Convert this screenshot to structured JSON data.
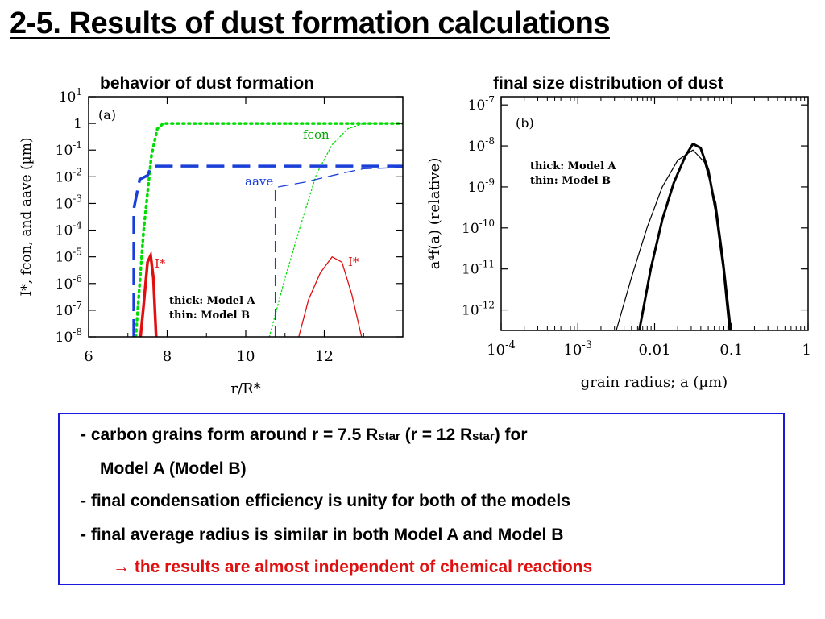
{
  "slide": {
    "title": "2-5. Results of dust formation calculations"
  },
  "panels": {
    "left_title": "behavior of dust formation",
    "right_title": "final size distribution of dust"
  },
  "chart_data": [
    {
      "type": "line",
      "panel_label": "(a)",
      "xlabel": "r/R*",
      "ylabel": "I*, fcon, and aave (µm)",
      "log_y": true,
      "xlim": [
        6,
        14
      ],
      "ylim": [
        -8,
        1
      ],
      "x_ticks": [
        "6",
        "8",
        "10",
        "12"
      ],
      "y_ticks": [
        "10^1",
        "1",
        "10^-1",
        "10^-2",
        "10^-3",
        "10^-4",
        "10^-5",
        "10^-6",
        "10^-7",
        "10^-8"
      ],
      "legend_note": [
        "thick: Model A",
        "thin: Model B"
      ],
      "series": [
        {
          "name": "fcon",
          "model": "A",
          "style": "thick-dotted",
          "color": "#00dd00",
          "points": [
            [
              7.2,
              -8
            ],
            [
              7.4,
              -4
            ],
            [
              7.6,
              -1.2
            ],
            [
              7.75,
              -0.2
            ],
            [
              7.9,
              0
            ],
            [
              14,
              0
            ]
          ]
        },
        {
          "name": "fcon",
          "model": "B",
          "style": "thin-dotted",
          "color": "#00dd00",
          "points": [
            [
              10.6,
              -8
            ],
            [
              11.0,
              -5.8
            ],
            [
              11.4,
              -3.8
            ],
            [
              11.8,
              -1.9
            ],
            [
              12.2,
              -0.8
            ],
            [
              12.6,
              -0.2
            ],
            [
              13.0,
              0
            ],
            [
              14,
              0
            ]
          ]
        },
        {
          "name": "aave",
          "model": "A",
          "style": "thick-dashed",
          "color": "#1a3fd8",
          "points": [
            [
              7.15,
              -8
            ],
            [
              7.15,
              -3.2
            ],
            [
              7.3,
              -2.1
            ],
            [
              7.5,
              -1.95
            ],
            [
              7.6,
              -1.6
            ],
            [
              14,
              -1.6
            ]
          ]
        },
        {
          "name": "aave",
          "model": "B",
          "style": "thin-dashed",
          "color": "#1a3fd8",
          "points": [
            [
              10.75,
              -8
            ],
            [
              10.75,
              -2.4
            ],
            [
              11.5,
              -2.2
            ],
            [
              12.5,
              -1.85
            ],
            [
              13.0,
              -1.7
            ],
            [
              14,
              -1.65
            ]
          ]
        },
        {
          "name": "I*",
          "model": "A",
          "style": "thick-solid",
          "color": "#e01010",
          "points": [
            [
              7.32,
              -8
            ],
            [
              7.4,
              -6.8
            ],
            [
              7.5,
              -5.2
            ],
            [
              7.58,
              -4.95
            ],
            [
              7.65,
              -5.8
            ],
            [
              7.72,
              -8
            ]
          ]
        },
        {
          "name": "I*",
          "model": "B",
          "style": "thin-solid",
          "color": "#e01010",
          "points": [
            [
              11.35,
              -8
            ],
            [
              11.6,
              -6.6
            ],
            [
              11.9,
              -5.6
            ],
            [
              12.2,
              -5.0
            ],
            [
              12.45,
              -5.2
            ],
            [
              12.7,
              -6.4
            ],
            [
              12.95,
              -8
            ]
          ]
        }
      ],
      "annotations": [
        {
          "text": "fcon",
          "color": "#00aa00"
        },
        {
          "text": "aave",
          "color": "#1a3fd8"
        },
        {
          "text": "I*",
          "color": "#e01010"
        },
        {
          "text": "I*",
          "color": "#e01010"
        }
      ]
    },
    {
      "type": "line",
      "panel_label": "(b)",
      "xlabel": "grain radius; a (µm)",
      "ylabel": "a⁴f(a) (relative)",
      "log_x": true,
      "log_y": true,
      "xlim": [
        -4,
        0
      ],
      "ylim": [
        -12.5,
        -6.8
      ],
      "x_ticks": [
        "10^-4",
        "10^-3",
        "0.01",
        "0.1",
        "1"
      ],
      "y_ticks": [
        "10^-7",
        "10^-8",
        "10^-9",
        "10^-10",
        "10^-11",
        "10^-12"
      ],
      "legend_note": [
        "thick: Model A",
        "thin: Model B"
      ],
      "series": [
        {
          "name": "Model A",
          "style": "thick",
          "color": "#000000",
          "points": [
            [
              -2.2,
              -12.5
            ],
            [
              -2.05,
              -11.0
            ],
            [
              -1.9,
              -9.8
            ],
            [
              -1.75,
              -8.9
            ],
            [
              -1.6,
              -8.25
            ],
            [
              -1.5,
              -7.95
            ],
            [
              -1.4,
              -8.05
            ],
            [
              -1.3,
              -8.6
            ],
            [
              -1.2,
              -9.6
            ],
            [
              -1.1,
              -11.0
            ],
            [
              -1.02,
              -12.5
            ]
          ]
        },
        {
          "name": "Model B",
          "style": "thin",
          "color": "#000000",
          "points": [
            [
              -2.5,
              -12.5
            ],
            [
              -2.3,
              -11.2
            ],
            [
              -2.1,
              -10.0
            ],
            [
              -1.9,
              -9.0
            ],
            [
              -1.7,
              -8.35
            ],
            [
              -1.5,
              -8.1
            ],
            [
              -1.35,
              -8.4
            ],
            [
              -1.2,
              -9.4
            ],
            [
              -1.1,
              -10.8
            ],
            [
              -1.0,
              -12.5
            ]
          ]
        }
      ]
    }
  ],
  "summary": {
    "line1_pre": "-  carbon grains form around r = 7.5 R",
    "line1_sub1": "star",
    "line1_mid": " (r = 12 R",
    "line1_sub2": "star",
    "line1_post": ") for",
    "line2": "Model A (Model B)",
    "line3": "-  final condensation efficiency is unity for both of the models",
    "line4": "-  final average radius is similar in both Model A and Model B",
    "line5_arrow": "→",
    "line5_text": " the results are almost independent of chemical reactions",
    "border_color": "#1a1adc",
    "highlight_color": "#e01010"
  }
}
